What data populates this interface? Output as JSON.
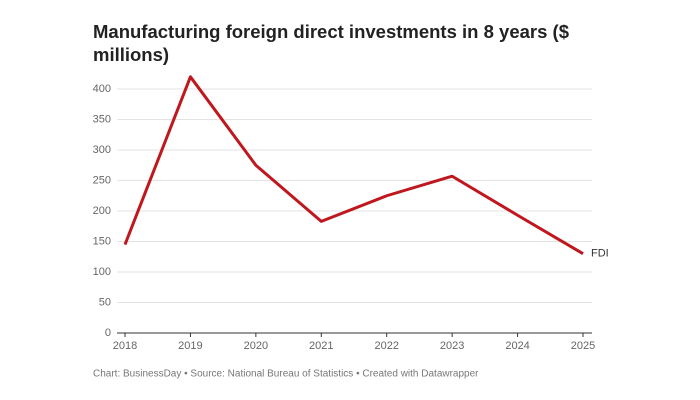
{
  "chart_data": {
    "type": "line",
    "title": "Manufacturing foreign direct investments in 8 years ($ millions)",
    "categories": [
      "2018",
      "2019",
      "2020",
      "2021",
      "2022",
      "2023",
      "2024",
      "2025"
    ],
    "series": [
      {
        "name": "FDI",
        "color": "#c0171e",
        "values": [
          145,
          420,
          275,
          183,
          225,
          257,
          193,
          130
        ]
      }
    ],
    "ylim": [
      0,
      400
    ],
    "yticks": [
      0,
      50,
      100,
      150,
      200,
      250,
      300,
      350,
      400
    ],
    "grid": true,
    "source": "Chart: BusinessDay • Source: National Bureau of Statistics • Created with Datawrapper"
  }
}
